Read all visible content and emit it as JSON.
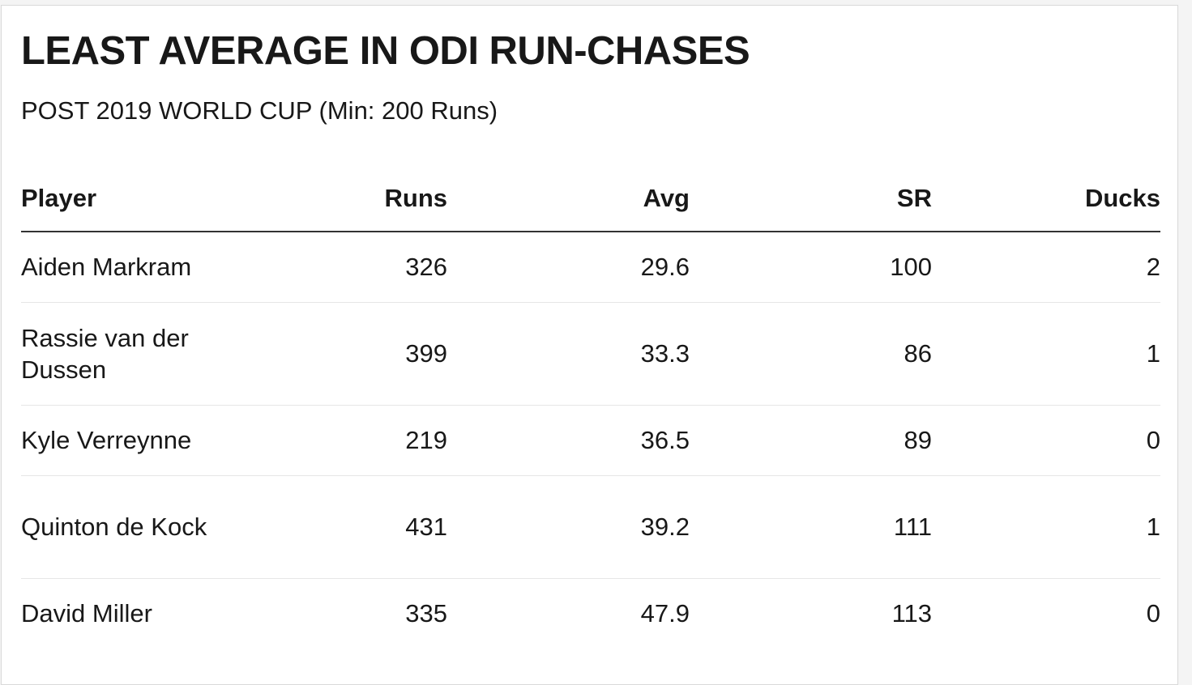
{
  "title": "LEAST AVERAGE IN ODI RUN-CHASES",
  "subtitle": "POST 2019 WORLD CUP (Min: 200 Runs)",
  "chart_data": {
    "type": "table",
    "columns": [
      "Player",
      "Runs",
      "Avg",
      "SR",
      "Ducks"
    ],
    "rows": [
      [
        "Aiden Markram",
        "326",
        "29.6",
        "100",
        "2"
      ],
      [
        "Rassie van der Dussen",
        "399",
        "33.3",
        "86",
        "1"
      ],
      [
        "Kyle Verreynne",
        "219",
        "36.5",
        "89",
        "0"
      ],
      [
        "Quinton de Kock",
        "431",
        "39.2",
        "111",
        "1"
      ],
      [
        "David Miller",
        "335",
        "47.9",
        "113",
        "0"
      ]
    ]
  },
  "colors": {
    "text": "#181818",
    "header_rule": "#333333",
    "row_rule": "#e6e6e6",
    "card_border": "#d9d9d9"
  }
}
